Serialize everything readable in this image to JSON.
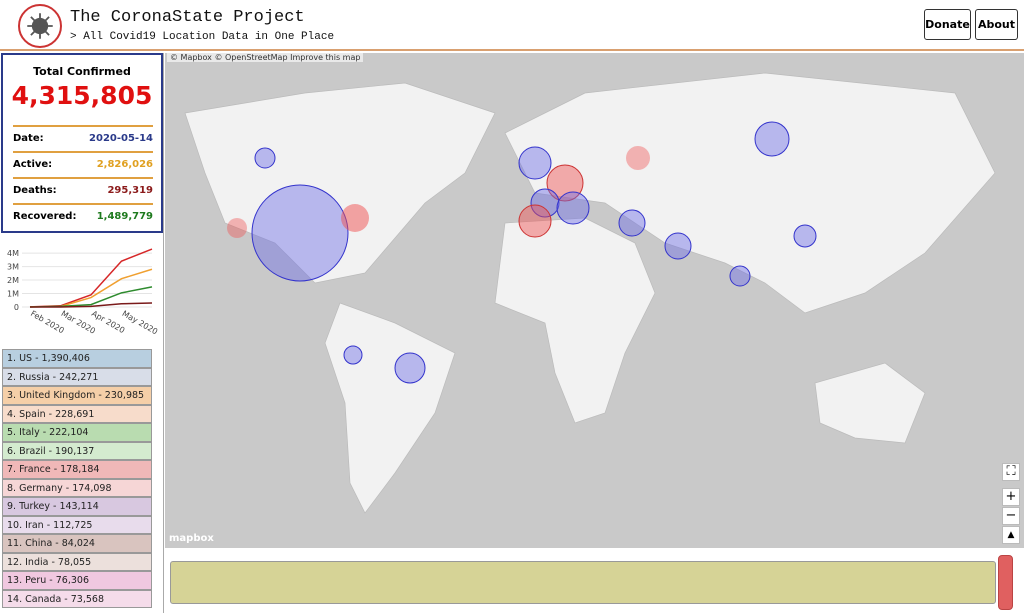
{
  "header": {
    "title": "The CoronaState Project",
    "subtitle": "> All Covid19 Location Data in One Place",
    "buttons": [
      "Donate",
      "About"
    ]
  },
  "stats": {
    "title": "Total Confirmed",
    "total": "4,315,805",
    "rows": [
      {
        "label": "Date:",
        "value": "2020-05-14"
      },
      {
        "label": "Active:",
        "value": "2,826,026"
      },
      {
        "label": "Deaths:",
        "value": "295,319"
      },
      {
        "label": "Recovered:",
        "value": "1,489,779"
      }
    ]
  },
  "chart": {
    "type": "line",
    "ylim": [
      0,
      4600000
    ],
    "yticks": [
      {
        "value": 4000000,
        "label": "4M"
      },
      {
        "value": 3000000,
        "label": "3M"
      },
      {
        "value": 2000000,
        "label": "2M"
      },
      {
        "value": 1000000,
        "label": "1M"
      },
      0
    ],
    "categories": [
      "Feb 2020",
      "Mar 2020",
      "Apr 2020",
      "May 2020",
      null
    ],
    "series": [
      {
        "color": "#d62728",
        "values": [
          10000,
          90000,
          900000,
          3400000,
          4300000
        ]
      },
      {
        "color": "#f0a030",
        "values": [
          5000,
          40000,
          700000,
          2100000,
          2800000
        ]
      },
      {
        "color": "#2e8b2e",
        "values": [
          300,
          45000,
          180000,
          1050000,
          1490000
        ]
      },
      {
        "color": "#7a1a1a",
        "values": [
          0,
          3000,
          45000,
          240000,
          300000
        ]
      }
    ]
  },
  "ranking": [
    "1. US - 1,390,406",
    "2. Russia - 242,271",
    "3. United Kingdom - 230,985",
    "4. Spain - 228,691",
    "5. Italy - 222,104",
    "6. Brazil - 190,137",
    "7. France - 178,184",
    "8. Germany - 174,098",
    "9. Turkey - 143,114",
    "10. Iran - 112,725",
    "11. China - 84,024",
    "12. India - 78,055",
    "13. Peru - 76,306",
    "14. Canada - 73,568"
  ],
  "map": {
    "attribution": [
      "© Mapbox",
      "© OpenStreetMap",
      "Improve this map"
    ],
    "logo": "mapbox",
    "controls": [
      "+",
      "−"
    ]
  }
}
